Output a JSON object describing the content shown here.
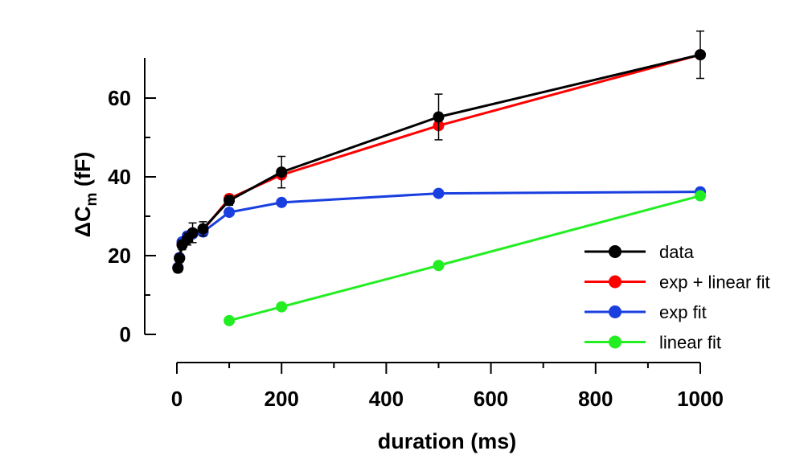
{
  "chart_data": {
    "type": "line",
    "xlabel": "duration (ms)",
    "ylabel_main": "ΔC",
    "ylabel_sub": "m",
    "ylabel_unit": " (fF)",
    "xlim": [
      0,
      1000
    ],
    "ylim": [
      0,
      70
    ],
    "xticks": [
      0,
      200,
      400,
      600,
      800,
      1000
    ],
    "xminor": [
      100,
      300,
      500,
      700,
      900
    ],
    "yticks": [
      0,
      20,
      40,
      60
    ],
    "yminor": [
      10,
      30,
      50
    ],
    "grid": false,
    "legend_position": "bottom-right",
    "series": [
      {
        "name": "exp + linear fit",
        "color": "#ff0000",
        "points": [
          [
            2,
            17
          ],
          [
            5,
            19.5
          ],
          [
            10,
            23
          ],
          [
            20,
            24.5
          ],
          [
            30,
            25.5
          ],
          [
            50,
            26.5
          ],
          [
            100,
            34.5
          ],
          [
            200,
            40.5
          ],
          [
            500,
            53
          ],
          [
            1000,
            71
          ]
        ]
      },
      {
        "name": "exp fit",
        "color": "#1a3fe0",
        "points": [
          [
            2,
            17
          ],
          [
            5,
            19.5
          ],
          [
            10,
            23.5
          ],
          [
            20,
            25
          ],
          [
            30,
            25.5
          ],
          [
            50,
            26
          ],
          [
            100,
            31
          ],
          [
            200,
            33.5
          ],
          [
            500,
            35.8
          ],
          [
            1000,
            36.2
          ]
        ]
      },
      {
        "name": "linear fit",
        "color": "#22ee22",
        "points": [
          [
            100,
            3.5
          ],
          [
            200,
            7
          ],
          [
            500,
            17.5
          ],
          [
            1000,
            35.2
          ]
        ]
      },
      {
        "name": "data",
        "color": "#000000",
        "points": [
          [
            2,
            16.8
          ],
          [
            5,
            19.3
          ],
          [
            10,
            22.7
          ],
          [
            20,
            24.2
          ],
          [
            30,
            25.8
          ],
          [
            50,
            26.8
          ],
          [
            100,
            34
          ],
          [
            200,
            41.2
          ],
          [
            500,
            55.2
          ],
          [
            1000,
            71
          ]
        ],
        "errors": [
          1,
          1,
          1.2,
          1.5,
          2.5,
          1.8,
          1.2,
          4,
          5.8,
          6
        ]
      }
    ],
    "legend_order": [
      "data",
      "exp + linear fit",
      "exp fit",
      "linear fit"
    ]
  }
}
